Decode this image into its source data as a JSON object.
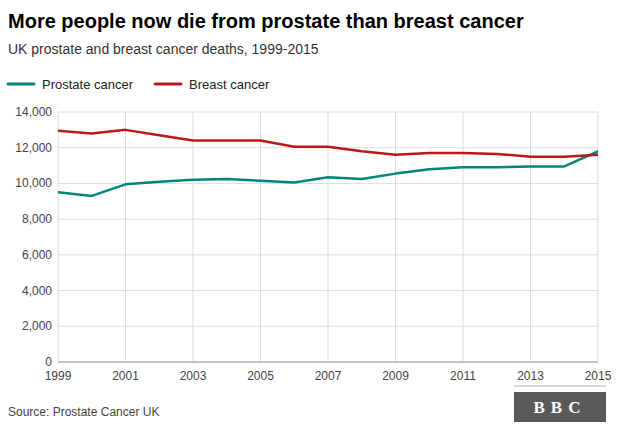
{
  "chart_data": {
    "type": "line",
    "title": "More people now die from prostate than breast cancer",
    "subtitle": "UK prostate and breast cancer deaths, 1999-2015",
    "annotations": [
      "Source: Prostate Cancer UK",
      "BBC"
    ],
    "x": [
      1999,
      2000,
      2001,
      2002,
      2003,
      2004,
      2005,
      2006,
      2007,
      2008,
      2009,
      2010,
      2011,
      2012,
      2013,
      2014,
      2015
    ],
    "series": [
      {
        "name": "Prostate cancer",
        "color": "#00857a",
        "values": [
          9500,
          9300,
          9950,
          10100,
          10200,
          10250,
          10150,
          10050,
          10350,
          10250,
          10550,
          10800,
          10900,
          10900,
          10950,
          10950,
          11800
        ]
      },
      {
        "name": "Breast cancer",
        "color": "#bb1919",
        "values": [
          12950,
          12800,
          13000,
          12700,
          12400,
          12400,
          12400,
          12050,
          12050,
          11800,
          11600,
          11700,
          11700,
          11650,
          11500,
          11500,
          11600
        ]
      }
    ],
    "xlim": [
      1999,
      2015
    ],
    "xticks": [
      1999,
      2001,
      2003,
      2005,
      2007,
      2009,
      2011,
      2013,
      2015
    ],
    "ylim": [
      0,
      14000
    ],
    "yticks": [
      0,
      {
        "value": 2000,
        "label": "2,000"
      },
      {
        "value": 4000,
        "label": "4,000"
      },
      {
        "value": 6000,
        "label": "6,000"
      },
      {
        "value": 8000,
        "label": "8,000"
      },
      {
        "value": 10000,
        "label": "10,000"
      },
      {
        "value": 12000,
        "label": "12,000"
      },
      {
        "value": 14000,
        "label": "14,000"
      }
    ],
    "grid": true,
    "legend": "top"
  }
}
